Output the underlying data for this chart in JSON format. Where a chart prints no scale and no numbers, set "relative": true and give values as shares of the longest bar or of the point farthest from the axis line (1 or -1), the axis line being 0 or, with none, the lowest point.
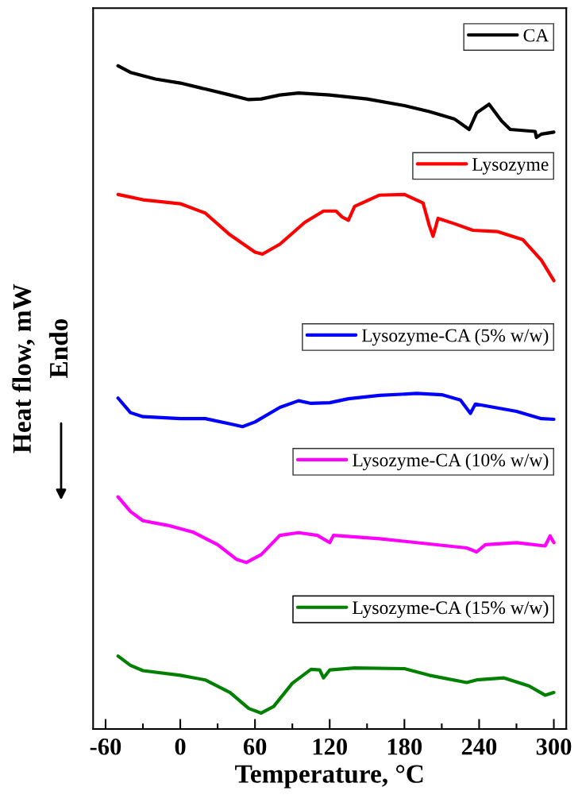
{
  "chart_data": {
    "type": "line",
    "xlabel": "Temperature, °C",
    "ylabel": "Heat flow, mW",
    "relative": true,
    "xlim": [
      -70,
      310
    ],
    "xticks": [
      -60,
      0,
      60,
      120,
      180,
      240,
      300
    ],
    "grid": false,
    "legend": "right",
    "annotations": [
      "Endo"
    ],
    "series": [
      {
        "name": "CA",
        "color": "#000000",
        "x": [
          -50,
          -40,
          -20,
          0,
          20,
          40,
          55,
          65,
          80,
          95,
          120,
          150,
          180,
          200,
          220,
          232,
          238,
          248,
          258,
          265,
          285,
          286,
          290,
          300
        ],
        "values": [
          1.0,
          0.99,
          0.98,
          0.974,
          0.965,
          0.956,
          0.949,
          0.95,
          0.956,
          0.959,
          0.956,
          0.95,
          0.94,
          0.931,
          0.92,
          0.904,
          0.929,
          0.942,
          0.917,
          0.904,
          0.901,
          0.892,
          0.897,
          0.9
        ]
      },
      {
        "name": "Lysozyme",
        "color": "#ff0000",
        "x": [
          -50,
          -30,
          0,
          20,
          40,
          60,
          66,
          80,
          100,
          115,
          125,
          130,
          135,
          140,
          160,
          180,
          195,
          200,
          203,
          207,
          220,
          235,
          255,
          275,
          290,
          300
        ],
        "values": [
          0.806,
          0.798,
          0.792,
          0.778,
          0.745,
          0.719,
          0.716,
          0.731,
          0.764,
          0.781,
          0.781,
          0.772,
          0.767,
          0.788,
          0.805,
          0.806,
          0.793,
          0.759,
          0.743,
          0.77,
          0.762,
          0.752,
          0.75,
          0.738,
          0.707,
          0.676
        ]
      },
      {
        "name": "Lysozyme-CA (5% w/w)",
        "color": "#0000ff",
        "x": [
          -50,
          -40,
          -30,
          0,
          20,
          40,
          50,
          60,
          80,
          95,
          105,
          120,
          135,
          160,
          190,
          210,
          225,
          233,
          237,
          270,
          290,
          300
        ],
        "values": [
          0.499,
          0.477,
          0.471,
          0.468,
          0.468,
          0.46,
          0.456,
          0.463,
          0.485,
          0.495,
          0.491,
          0.492,
          0.498,
          0.503,
          0.506,
          0.504,
          0.496,
          0.476,
          0.49,
          0.479,
          0.468,
          0.467
        ]
      },
      {
        "name": "Lysozyme-CA (10% w/w)",
        "color": "#ff00ff",
        "x": [
          -50,
          -40,
          -30,
          -10,
          10,
          30,
          45,
          53,
          65,
          80,
          95,
          110,
          120,
          123,
          160,
          200,
          230,
          238,
          245,
          270,
          293,
          297,
          300
        ],
        "values": [
          0.35,
          0.328,
          0.314,
          0.307,
          0.297,
          0.278,
          0.256,
          0.251,
          0.263,
          0.292,
          0.296,
          0.292,
          0.281,
          0.292,
          0.287,
          0.279,
          0.273,
          0.267,
          0.278,
          0.281,
          0.276,
          0.291,
          0.281
        ]
      },
      {
        "name": "Lysozyme-CA (15% w/w)",
        "color": "#008000",
        "x": [
          -50,
          -40,
          -30,
          0,
          20,
          40,
          55,
          65,
          75,
          90,
          105,
          112,
          115,
          120,
          140,
          180,
          200,
          230,
          238,
          260,
          280,
          293,
          300
        ],
        "values": [
          0.11,
          0.096,
          0.088,
          0.081,
          0.074,
          0.055,
          0.031,
          0.024,
          0.034,
          0.069,
          0.09,
          0.089,
          0.077,
          0.089,
          0.092,
          0.091,
          0.081,
          0.07,
          0.074,
          0.077,
          0.065,
          0.051,
          0.055
        ]
      }
    ]
  }
}
